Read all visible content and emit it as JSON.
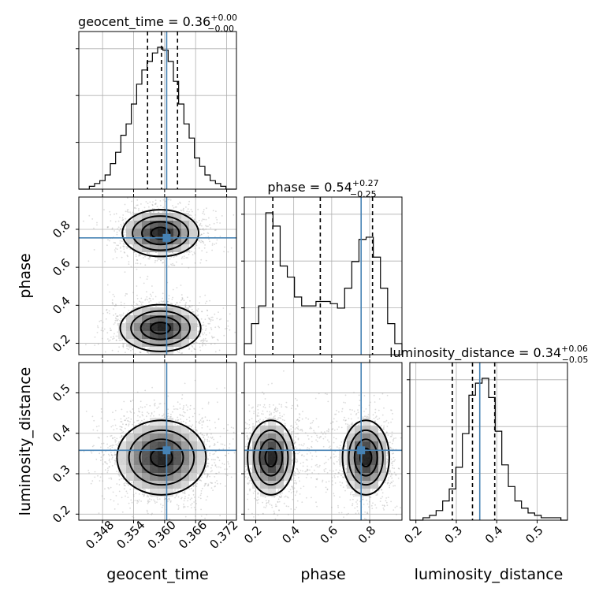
{
  "chart_data": {
    "type": "corner",
    "parameters": [
      {
        "name": "geocent_time",
        "median": 0.36,
        "plus": "+0.00",
        "minus": "−0.00",
        "median_str": "0.36",
        "q_lo": 0.3567,
        "q_med": 0.3594,
        "q_hi": 0.3625,
        "truth": 0.3604,
        "range": [
          0.3434,
          0.3739
        ],
        "ticks": [
          "0.348",
          "0.354",
          "0.360",
          "0.366",
          "0.372"
        ]
      },
      {
        "name": "phase",
        "median": 0.54,
        "plus": "+0.27",
        "minus": "−0.25",
        "median_str": "0.54",
        "q_lo": 0.29,
        "q_med": 0.54,
        "q_hi": 0.815,
        "truth": 0.755,
        "range": [
          0.14,
          0.97
        ],
        "ticks": [
          "0.2",
          "0.4",
          "0.6",
          "0.8"
        ]
      },
      {
        "name": "luminosity_distance",
        "median": 0.34,
        "plus": "+0.06",
        "minus": "−0.05",
        "median_str": "0.34",
        "q_lo": 0.29,
        "q_med": 0.34,
        "q_hi": 0.395,
        "truth": 0.358,
        "range": [
          0.185,
          0.575
        ],
        "ticks": [
          "0.2",
          "0.3",
          "0.4",
          "0.5"
        ]
      }
    ],
    "histograms": [
      {
        "param": "geocent_time",
        "bins": [
          0.3434,
          0.3739
        ],
        "counts": [
          0,
          0,
          1,
          2,
          3,
          5,
          9,
          13,
          19,
          23,
          30,
          37,
          42,
          45,
          48,
          50,
          49,
          45,
          38,
          30,
          23,
          18,
          11,
          8,
          5,
          3,
          2,
          1,
          0,
          0
        ]
      },
      {
        "param": "phase",
        "bins": [
          0.14,
          0.97
        ],
        "counts": [
          5,
          14,
          22,
          64,
          58,
          40,
          35,
          26,
          22,
          22,
          24,
          24,
          23,
          21,
          30,
          42,
          52,
          53,
          44,
          30,
          14,
          5
        ]
      },
      {
        "param": "luminosity_distance",
        "bins": [
          0.185,
          0.575
        ],
        "counts": [
          0,
          0,
          1,
          2,
          4,
          8,
          13,
          22,
          36,
          52,
          57,
          59,
          51,
          37,
          23,
          14,
          8,
          5,
          3,
          2,
          1,
          1,
          1,
          0
        ]
      }
    ],
    "truths_color": "#4682b4",
    "line_color": "#000000"
  }
}
